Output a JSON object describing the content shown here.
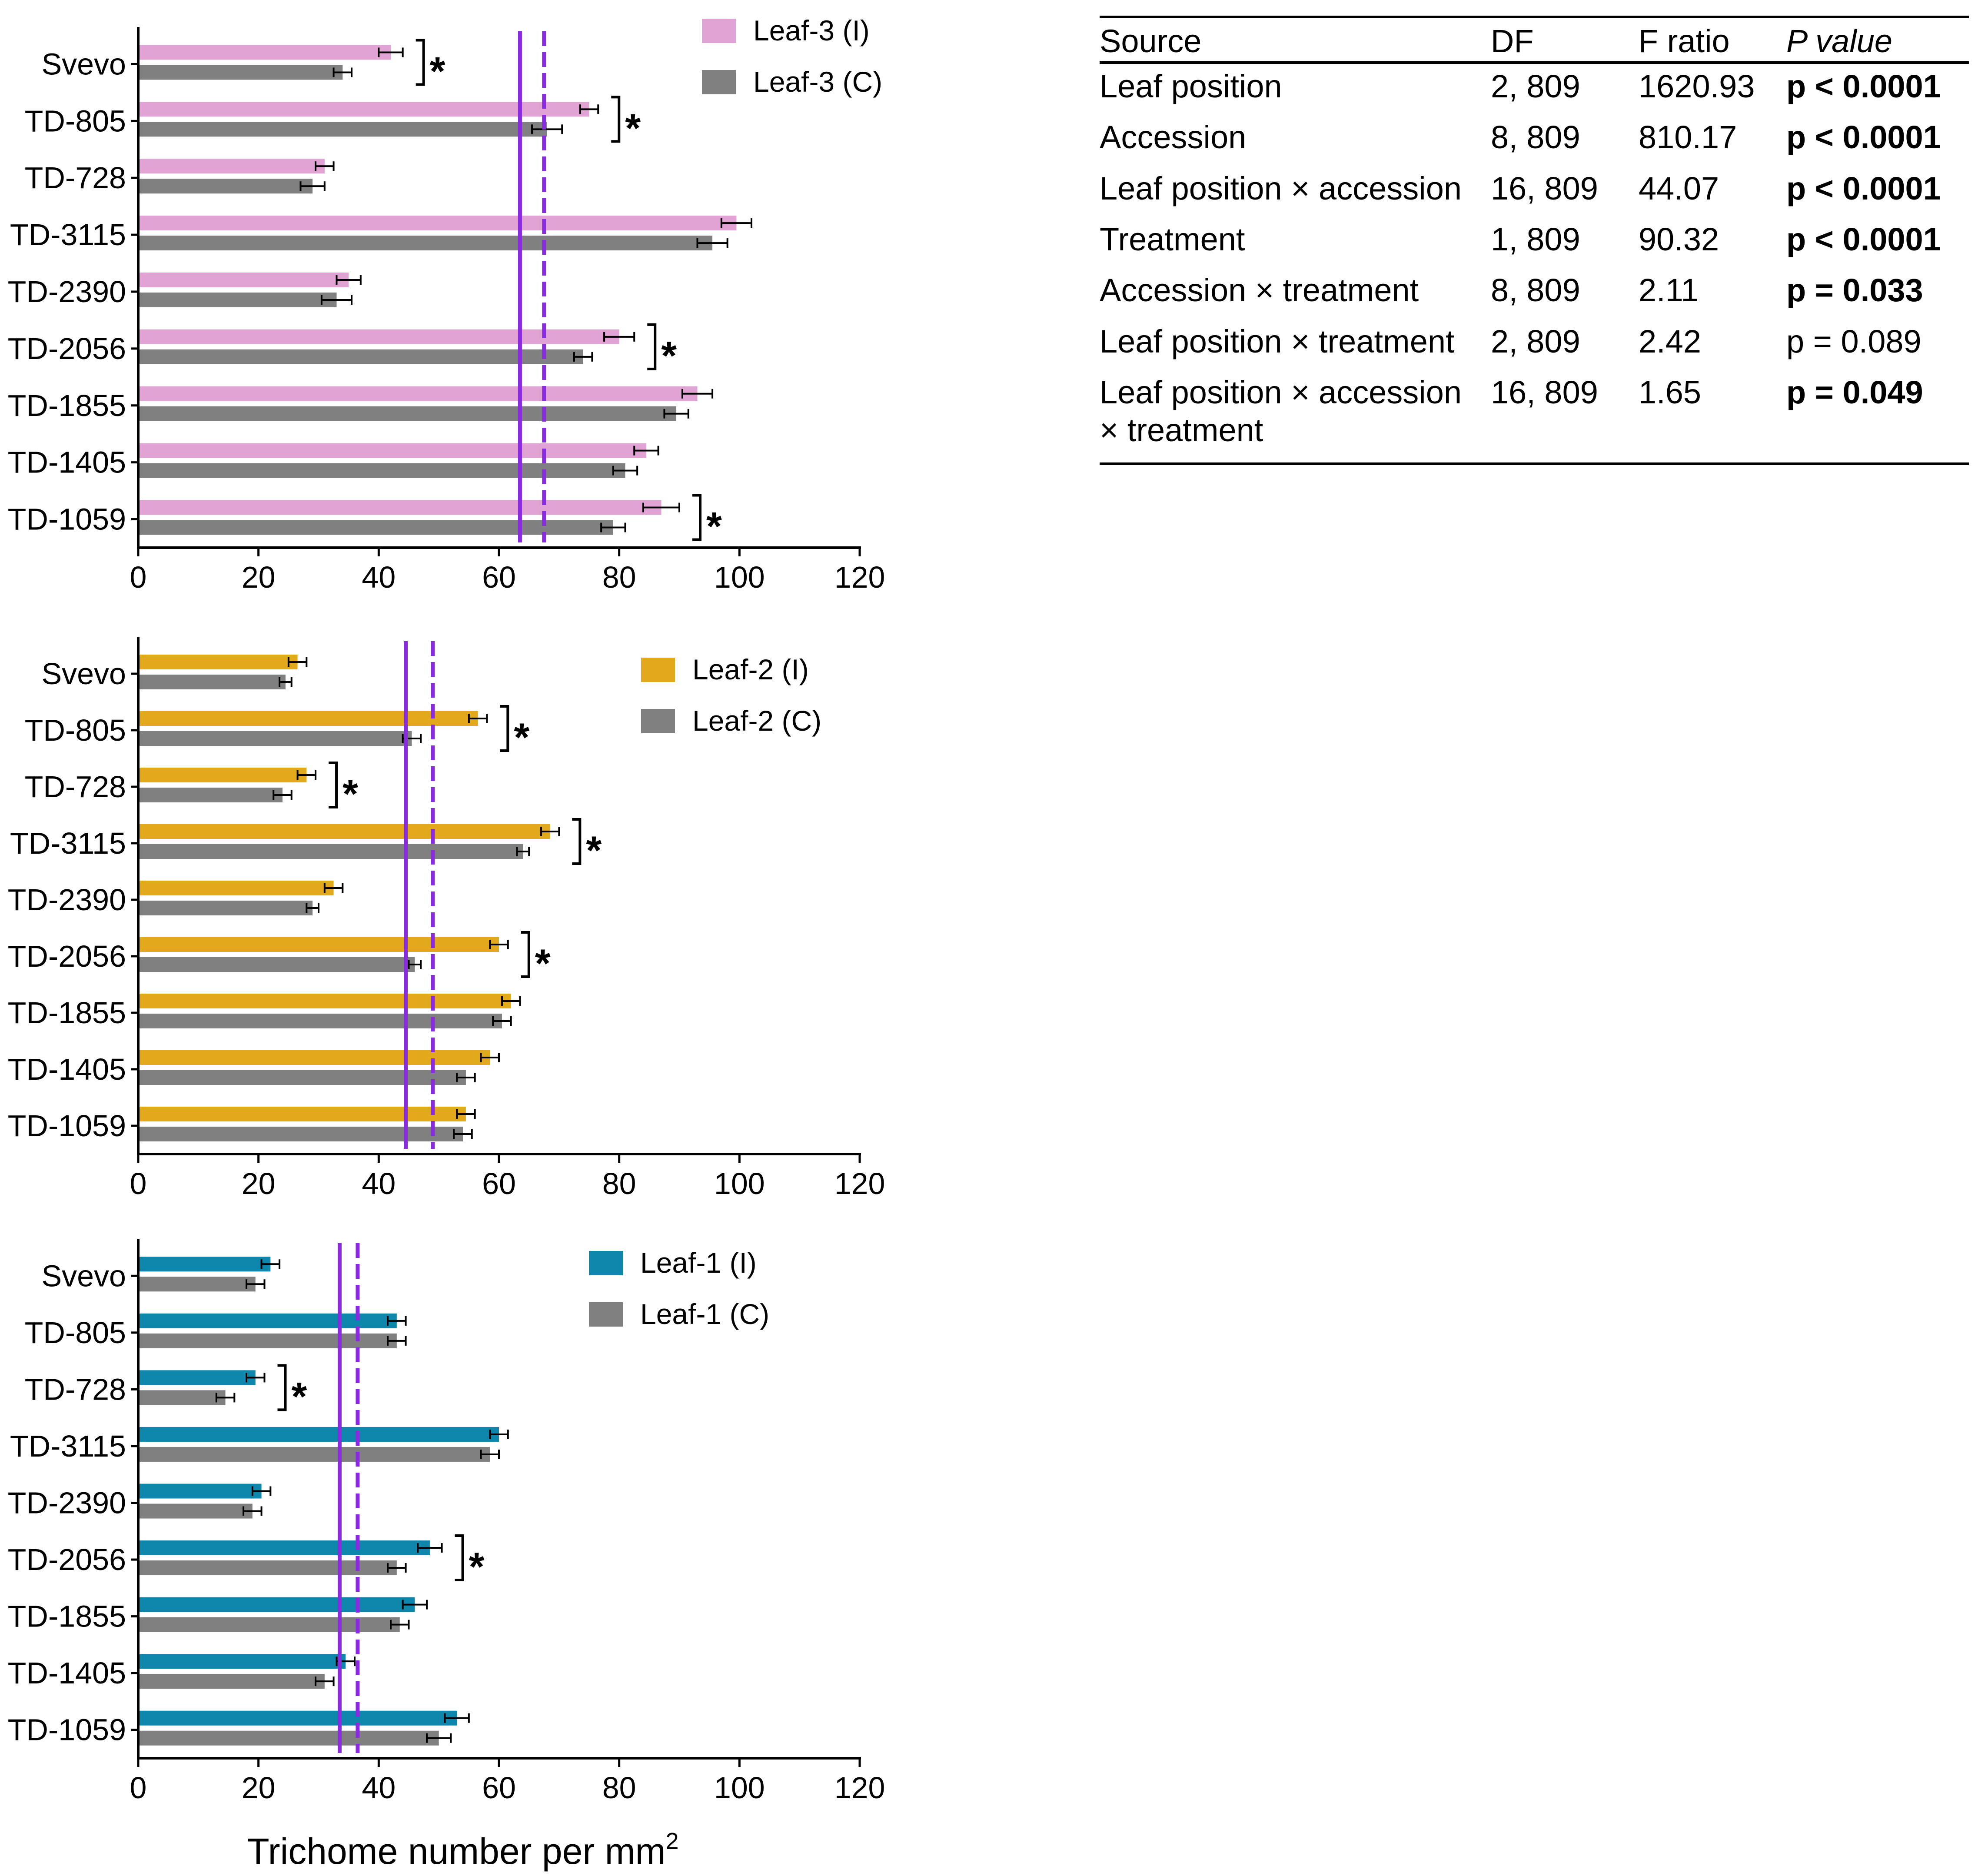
{
  "chart_data": [
    {
      "type": "bar",
      "orientation": "horizontal",
      "panel": "Leaf-3",
      "categories": [
        "Svevo",
        "TD-805",
        "TD-728",
        "TD-3115",
        "TD-2390",
        "TD-2056",
        "TD-1855",
        "TD-1405",
        "TD-1059"
      ],
      "series": [
        {
          "name": "Leaf-3 (I)",
          "color": "#e0a3d3",
          "values": [
            42,
            75,
            31,
            99.5,
            35,
            80,
            93,
            84.5,
            87
          ],
          "errors": [
            2,
            1.5,
            1.5,
            2.5,
            2,
            2.5,
            2.5,
            2,
            3
          ]
        },
        {
          "name": "Leaf-3 (C)",
          "color": "#808080",
          "values": [
            34,
            68,
            29,
            95.5,
            33,
            74,
            89.5,
            81,
            79
          ],
          "errors": [
            1.5,
            2.5,
            2,
            2.5,
            2.5,
            1.5,
            2,
            2,
            2
          ]
        }
      ],
      "significant": [
        true,
        true,
        false,
        false,
        false,
        true,
        false,
        false,
        true
      ],
      "significance_mark": "*",
      "mean_lines": [
        {
          "style": "solid",
          "value": 63.5,
          "color": "#8a2be2"
        },
        {
          "style": "dashed",
          "value": 67.5,
          "color": "#8a2be2"
        }
      ],
      "xlim": [
        0,
        120
      ],
      "xticks": [
        "0",
        "20",
        "40",
        "60",
        "80",
        "100",
        "120"
      ],
      "legend": {
        "position": "top-right"
      }
    },
    {
      "type": "bar",
      "orientation": "horizontal",
      "panel": "Leaf-2",
      "categories": [
        "Svevo",
        "TD-805",
        "TD-728",
        "TD-3115",
        "TD-2390",
        "TD-2056",
        "TD-1855",
        "TD-1405",
        "TD-1059"
      ],
      "series": [
        {
          "name": "Leaf-2 (I)",
          "color": "#e3a91c",
          "values": [
            26.5,
            56.5,
            28,
            68.5,
            32.5,
            60,
            62,
            58.5,
            54.5
          ],
          "errors": [
            1.5,
            1.5,
            1.5,
            1.5,
            1.5,
            1.5,
            1.5,
            1.5,
            1.5
          ]
        },
        {
          "name": "Leaf-2 (C)",
          "color": "#808080",
          "values": [
            24.5,
            45.5,
            24,
            64,
            29,
            46,
            60.5,
            54.5,
            54
          ],
          "errors": [
            1,
            1.5,
            1.5,
            1,
            1,
            1,
            1.5,
            1.5,
            1.5
          ]
        }
      ],
      "significant": [
        false,
        true,
        true,
        true,
        false,
        true,
        false,
        false,
        false
      ],
      "significance_mark": "*",
      "mean_lines": [
        {
          "style": "solid",
          "value": 44.5,
          "color": "#8a2be2"
        },
        {
          "style": "dashed",
          "value": 49,
          "color": "#8a2be2"
        }
      ],
      "xlim": [
        0,
        120
      ],
      "xticks": [
        "0",
        "20",
        "40",
        "60",
        "80",
        "100",
        "120"
      ],
      "legend": {
        "position": "top-right"
      }
    },
    {
      "type": "bar",
      "orientation": "horizontal",
      "panel": "Leaf-1",
      "categories": [
        "Svevo",
        "TD-805",
        "TD-728",
        "TD-3115",
        "TD-2390",
        "TD-2056",
        "TD-1855",
        "TD-1405",
        "TD-1059"
      ],
      "series": [
        {
          "name": "Leaf-1 (I)",
          "color": "#0f87ad",
          "values": [
            22,
            43,
            19.5,
            60,
            20.5,
            48.5,
            46,
            34.5,
            53
          ],
          "errors": [
            1.5,
            1.5,
            1.5,
            1.5,
            1.5,
            2,
            2,
            1.5,
            2
          ]
        },
        {
          "name": "Leaf-1 (C)",
          "color": "#808080",
          "values": [
            19.5,
            43,
            14.5,
            58.5,
            19,
            43,
            43.5,
            31,
            50
          ],
          "errors": [
            1.5,
            1.5,
            1.5,
            1.5,
            1.5,
            1.5,
            1.5,
            1.5,
            2
          ]
        }
      ],
      "significant": [
        false,
        false,
        true,
        false,
        false,
        true,
        false,
        false,
        false
      ],
      "significance_mark": "*",
      "mean_lines": [
        {
          "style": "solid",
          "value": 33.5,
          "color": "#8a2be2"
        },
        {
          "style": "dashed",
          "value": 36.5,
          "color": "#8a2be2"
        }
      ],
      "xlim": [
        0,
        120
      ],
      "xticks": [
        "0",
        "20",
        "40",
        "60",
        "80",
        "100",
        "120"
      ],
      "xlabel": "Trichome number per mm",
      "xlabel_superscript": "2",
      "legend": {
        "position": "top-right"
      }
    }
  ],
  "anova_table": {
    "headers": [
      "Source",
      "DF",
      "F ratio",
      "P value"
    ],
    "rows": [
      {
        "source": "Leaf position",
        "df": "2, 809",
        "f": "1620.93",
        "p": "p < 0.0001",
        "bold": true
      },
      {
        "source": "Accession",
        "df": "8, 809",
        "f": "810.17",
        "p": "p < 0.0001",
        "bold": true
      },
      {
        "source": "Leaf position × accession",
        "df": "16, 809",
        "f": "44.07",
        "p": "p < 0.0001",
        "bold": true
      },
      {
        "source": "Treatment",
        "df": "1, 809",
        "f": "90.32",
        "p": "p < 0.0001",
        "bold": true
      },
      {
        "source": "Accession × treatment",
        "df": "8, 809",
        "f": "2.11",
        "p": "p = 0.033",
        "bold": true
      },
      {
        "source": "Leaf position × treatment",
        "df": "2, 809",
        "f": "2.42",
        "p": "p = 0.089",
        "bold": false
      },
      {
        "source": "Leaf position × accession",
        "source_line2": "× treatment",
        "df": "16, 809",
        "f": "1.65",
        "p": "p = 0.049",
        "bold": true
      }
    ]
  }
}
